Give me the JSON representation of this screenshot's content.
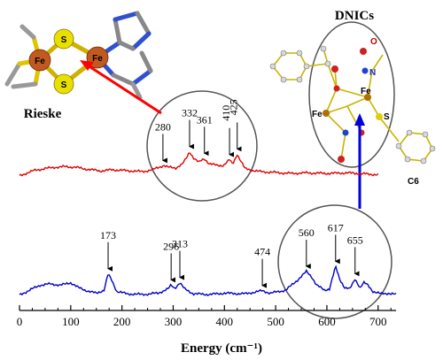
{
  "chart_data": {
    "type": "line",
    "xlabel": "Energy (cm⁻¹)",
    "xlim": [
      0,
      735
    ],
    "x_ticks": [
      0,
      100,
      200,
      300,
      400,
      500,
      600,
      700
    ],
    "grid": false,
    "colors": {
      "rieske": "#e00000",
      "dnic": "#0000c8",
      "circle": "#555555",
      "arrow_dnic": "#0000e0",
      "arrow_rieske": "#ff0000"
    },
    "series": [
      {
        "key": "rieske",
        "points": [
          [
            0,
            0.33
          ],
          [
            15,
            0.38
          ],
          [
            30,
            0.42
          ],
          [
            50,
            0.45
          ],
          [
            70,
            0.47
          ],
          [
            90,
            0.48
          ],
          [
            110,
            0.47
          ],
          [
            130,
            0.44
          ],
          [
            160,
            0.41
          ],
          [
            180,
            0.43
          ],
          [
            200,
            0.42
          ],
          [
            220,
            0.41
          ],
          [
            240,
            0.4
          ],
          [
            260,
            0.43
          ],
          [
            275,
            0.48
          ],
          [
            282,
            0.5
          ],
          [
            290,
            0.47
          ],
          [
            305,
            0.46
          ],
          [
            318,
            0.52
          ],
          [
            326,
            0.62
          ],
          [
            332,
            0.72
          ],
          [
            340,
            0.62
          ],
          [
            350,
            0.55
          ],
          [
            361,
            0.61
          ],
          [
            370,
            0.53
          ],
          [
            385,
            0.5
          ],
          [
            398,
            0.5
          ],
          [
            410,
            0.59
          ],
          [
            416,
            0.52
          ],
          [
            425,
            0.68
          ],
          [
            432,
            0.57
          ],
          [
            440,
            0.45
          ],
          [
            455,
            0.42
          ],
          [
            470,
            0.4
          ],
          [
            490,
            0.39
          ],
          [
            510,
            0.38
          ],
          [
            530,
            0.37
          ],
          [
            560,
            0.38
          ],
          [
            600,
            0.37
          ],
          [
            640,
            0.38
          ],
          [
            680,
            0.36
          ],
          [
            700,
            0.35
          ]
        ]
      },
      {
        "key": "dnic",
        "points": [
          [
            0,
            0.02
          ],
          [
            20,
            0.1
          ],
          [
            40,
            0.18
          ],
          [
            60,
            0.2
          ],
          [
            80,
            0.18
          ],
          [
            100,
            0.22
          ],
          [
            115,
            0.14
          ],
          [
            135,
            0.08
          ],
          [
            150,
            0.05
          ],
          [
            165,
            0.1
          ],
          [
            173,
            0.36
          ],
          [
            180,
            0.26
          ],
          [
            190,
            0.08
          ],
          [
            210,
            0.04
          ],
          [
            240,
            0.03
          ],
          [
            270,
            0.05
          ],
          [
            290,
            0.12
          ],
          [
            296,
            0.18
          ],
          [
            303,
            0.13
          ],
          [
            313,
            0.22
          ],
          [
            322,
            0.12
          ],
          [
            340,
            0.04
          ],
          [
            370,
            0.03
          ],
          [
            400,
            0.05
          ],
          [
            440,
            0.04
          ],
          [
            474,
            0.09
          ],
          [
            490,
            0.05
          ],
          [
            520,
            0.1
          ],
          [
            545,
            0.28
          ],
          [
            560,
            0.4
          ],
          [
            570,
            0.32
          ],
          [
            580,
            0.18
          ],
          [
            595,
            0.1
          ],
          [
            605,
            0.12
          ],
          [
            617,
            0.48
          ],
          [
            625,
            0.28
          ],
          [
            635,
            0.14
          ],
          [
            645,
            0.12
          ],
          [
            655,
            0.28
          ],
          [
            665,
            0.14
          ],
          [
            672,
            0.22
          ],
          [
            680,
            0.18
          ],
          [
            690,
            0.08
          ],
          [
            705,
            0.04
          ],
          [
            720,
            0.05
          ],
          [
            735,
            0.03
          ]
        ]
      }
    ],
    "peaks": {
      "rieske": [
        280,
        332,
        361,
        410,
        425
      ],
      "dnic": [
        173,
        296,
        313,
        474,
        560,
        617,
        655
      ]
    },
    "annotations": {
      "left_structure": "Rieske",
      "right_structure": "DNICs"
    }
  },
  "rieske_atoms": {
    "s_top": "S",
    "s_bottom": "S",
    "fe_left": "Fe",
    "fe_right": "Fe"
  },
  "dnic_atoms": {
    "o1": "O",
    "n1": "N",
    "fe1": "Fe",
    "fe2": "Fe",
    "s1": "S",
    "c6": "C6"
  }
}
